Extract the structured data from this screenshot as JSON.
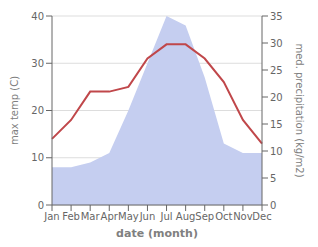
{
  "chart_data": {
    "type": "line",
    "categories": [
      "Jan",
      "Feb",
      "Mar",
      "Apr",
      "May",
      "Jun",
      "Jul",
      "Aug",
      "Sep",
      "Oct",
      "Nov",
      "Dec"
    ],
    "series": [
      {
        "type": "area",
        "color": "#c5cef0",
        "values": [
          8,
          8,
          9,
          11,
          20,
          30,
          40,
          38,
          27,
          13,
          11,
          11
        ]
      },
      {
        "type": "line",
        "color": "#c0474a",
        "values": [
          14,
          18,
          24,
          24,
          25,
          31,
          34,
          34,
          31,
          26,
          18,
          13
        ]
      }
    ],
    "xlabel": "date (month)",
    "ylabel": "max temp (C)",
    "y2label": "med. precipitation (kg/m2)",
    "ylim": [
      0,
      40
    ],
    "yticks": [
      0,
      10,
      20,
      30,
      40
    ],
    "y2lim": [
      0,
      35
    ],
    "y2ticks": [
      0,
      5,
      10,
      15,
      20,
      25,
      30,
      35
    ],
    "grid": true
  }
}
